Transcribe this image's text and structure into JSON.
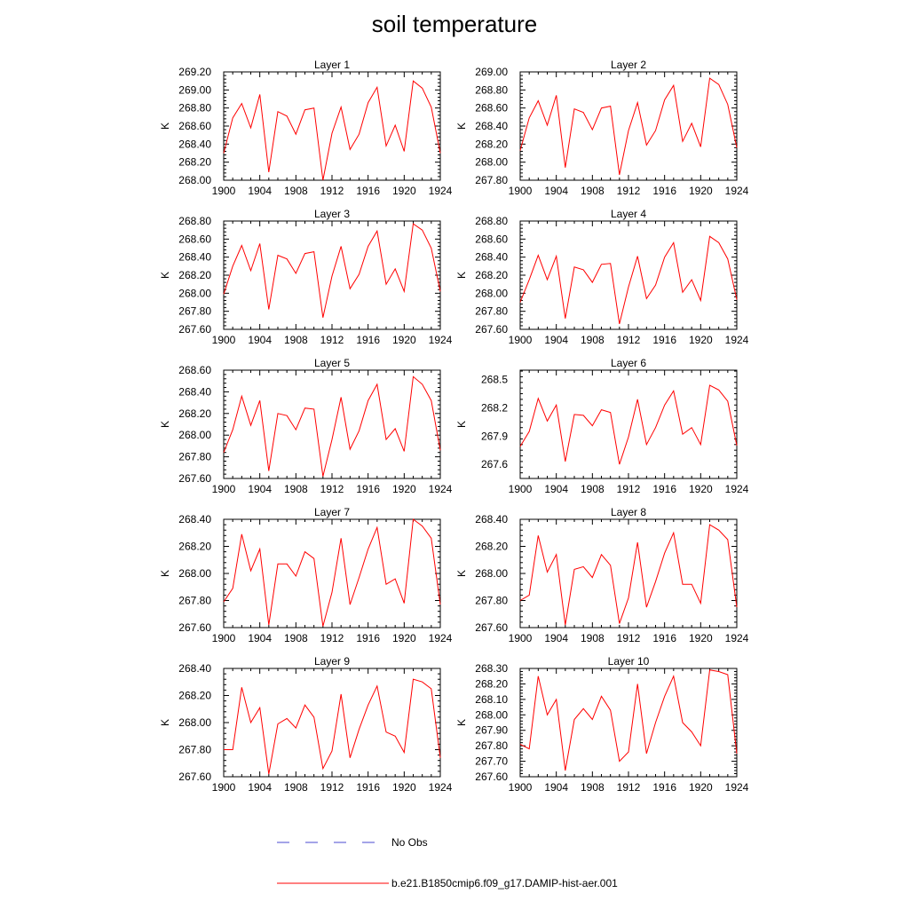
{
  "title": "soil temperature",
  "legend": [
    {
      "label": "No Obs",
      "color": "#4a4ad0",
      "style": "dashed"
    },
    {
      "label": "b.e21.B1850cmip6.f09_g17.DAMIP-hist-aer.001",
      "color": "#ff0000",
      "style": "solid"
    }
  ],
  "chart_data": [
    {
      "type": "line",
      "title": "Layer 1",
      "ylabel": "K",
      "xlim": [
        1900,
        1924
      ],
      "ylim": [
        268.0,
        269.2
      ],
      "x_ticks": [
        1900,
        1904,
        1908,
        1912,
        1916,
        1920,
        1924
      ],
      "y_ticks": [
        "268.00",
        "268.20",
        "268.40",
        "268.60",
        "268.80",
        "269.00",
        "269.20"
      ],
      "y_tick_values": [
        268.0,
        268.2,
        268.4,
        268.6,
        268.8,
        269.0,
        269.2
      ],
      "series": [
        {
          "color": "#ff0000",
          "x": [
            1900,
            1901,
            1902,
            1903,
            1904,
            1905,
            1906,
            1907,
            1908,
            1909,
            1910,
            1911,
            1912,
            1913,
            1914,
            1915,
            1916,
            1917,
            1918,
            1919,
            1920,
            1921,
            1922,
            1923,
            1924
          ],
          "values": [
            268.3,
            268.69,
            268.85,
            268.58,
            268.95,
            268.09,
            268.76,
            268.71,
            268.51,
            268.78,
            268.8,
            268.0,
            268.52,
            268.81,
            268.34,
            268.51,
            268.86,
            269.03,
            268.38,
            268.61,
            268.32,
            269.1,
            269.02,
            268.81,
            268.3
          ]
        }
      ]
    },
    {
      "type": "line",
      "title": "Layer 2",
      "ylabel": "K",
      "xlim": [
        1900,
        1924
      ],
      "ylim": [
        267.8,
        269.0
      ],
      "x_ticks": [
        1900,
        1904,
        1908,
        1912,
        1916,
        1920,
        1924
      ],
      "y_ticks": [
        "267.80",
        "268.00",
        "268.20",
        "268.40",
        "268.60",
        "268.80",
        "269.00"
      ],
      "y_tick_values": [
        267.8,
        268.0,
        268.2,
        268.4,
        268.6,
        268.8,
        269.0
      ],
      "series": [
        {
          "color": "#ff0000",
          "x": [
            1900,
            1901,
            1902,
            1903,
            1904,
            1905,
            1906,
            1907,
            1908,
            1909,
            1910,
            1911,
            1912,
            1913,
            1914,
            1915,
            1916,
            1917,
            1918,
            1919,
            1920,
            1921,
            1922,
            1923,
            1924
          ],
          "values": [
            268.13,
            268.49,
            268.68,
            268.41,
            268.74,
            267.94,
            268.59,
            268.55,
            268.36,
            268.6,
            268.62,
            267.86,
            268.35,
            268.66,
            268.19,
            268.35,
            268.69,
            268.85,
            268.23,
            268.43,
            268.17,
            268.93,
            268.86,
            268.64,
            268.16
          ]
        }
      ]
    },
    {
      "type": "line",
      "title": "Layer 3",
      "ylabel": "K",
      "xlim": [
        1900,
        1924
      ],
      "ylim": [
        267.6,
        268.8
      ],
      "x_ticks": [
        1900,
        1904,
        1908,
        1912,
        1916,
        1920,
        1924
      ],
      "y_ticks": [
        "267.60",
        "267.80",
        "268.00",
        "268.20",
        "268.40",
        "268.60",
        "268.80"
      ],
      "y_tick_values": [
        267.6,
        267.8,
        268.0,
        268.2,
        268.4,
        268.6,
        268.8
      ],
      "series": [
        {
          "color": "#ff0000",
          "x": [
            1900,
            1901,
            1902,
            1903,
            1904,
            1905,
            1906,
            1907,
            1908,
            1909,
            1910,
            1911,
            1912,
            1913,
            1914,
            1915,
            1916,
            1917,
            1918,
            1919,
            1920,
            1921,
            1922,
            1923,
            1924
          ],
          "values": [
            267.99,
            268.3,
            268.53,
            268.25,
            268.55,
            267.82,
            268.42,
            268.38,
            268.22,
            268.44,
            268.46,
            267.73,
            268.19,
            268.52,
            268.05,
            268.21,
            268.52,
            268.69,
            268.1,
            268.27,
            268.02,
            268.77,
            268.7,
            268.5,
            268.02
          ]
        }
      ]
    },
    {
      "type": "line",
      "title": "Layer 4",
      "ylabel": "K",
      "xlim": [
        1900,
        1924
      ],
      "ylim": [
        267.6,
        268.8
      ],
      "x_ticks": [
        1900,
        1904,
        1908,
        1912,
        1916,
        1920,
        1924
      ],
      "y_ticks": [
        "267.60",
        "267.80",
        "268.00",
        "268.20",
        "268.40",
        "268.60",
        "268.80"
      ],
      "y_tick_values": [
        267.6,
        267.8,
        268.0,
        268.2,
        268.4,
        268.6,
        268.8
      ],
      "series": [
        {
          "color": "#ff0000",
          "x": [
            1900,
            1901,
            1902,
            1903,
            1904,
            1905,
            1906,
            1907,
            1908,
            1909,
            1910,
            1911,
            1912,
            1913,
            1914,
            1915,
            1916,
            1917,
            1918,
            1919,
            1920,
            1921,
            1922,
            1923,
            1924
          ],
          "values": [
            267.9,
            268.15,
            268.42,
            268.15,
            268.41,
            267.72,
            268.29,
            268.26,
            268.12,
            268.32,
            268.33,
            267.66,
            268.07,
            268.41,
            267.94,
            268.09,
            268.4,
            268.56,
            268.01,
            268.15,
            267.92,
            268.63,
            268.56,
            268.38,
            267.93
          ]
        }
      ]
    },
    {
      "type": "line",
      "title": "Layer 5",
      "ylabel": "K",
      "xlim": [
        1900,
        1924
      ],
      "ylim": [
        267.6,
        268.6
      ],
      "x_ticks": [
        1900,
        1904,
        1908,
        1912,
        1916,
        1920,
        1924
      ],
      "y_ticks": [
        "267.60",
        "267.80",
        "268.00",
        "268.20",
        "268.40",
        "268.60"
      ],
      "y_tick_values": [
        267.6,
        267.8,
        268.0,
        268.2,
        268.4,
        268.6
      ],
      "series": [
        {
          "color": "#ff0000",
          "x": [
            1900,
            1901,
            1902,
            1903,
            1904,
            1905,
            1906,
            1907,
            1908,
            1909,
            1910,
            1911,
            1912,
            1913,
            1914,
            1915,
            1916,
            1917,
            1918,
            1919,
            1920,
            1921,
            1922,
            1923,
            1924
          ],
          "values": [
            267.84,
            268.05,
            268.36,
            268.09,
            268.32,
            267.67,
            268.2,
            268.18,
            268.05,
            268.25,
            268.24,
            267.62,
            267.96,
            268.35,
            267.87,
            268.04,
            268.32,
            268.47,
            267.96,
            268.06,
            267.85,
            268.54,
            268.47,
            268.32,
            267.86
          ]
        }
      ]
    },
    {
      "type": "line",
      "title": "Layer 6",
      "ylabel": "K",
      "xlim": [
        1900,
        1924
      ],
      "ylim": [
        267.45,
        268.6
      ],
      "x_ticks": [
        1900,
        1904,
        1908,
        1912,
        1916,
        1920,
        1924
      ],
      "y_ticks": [
        "267.6",
        "267.9",
        "268.2",
        "268.5"
      ],
      "y_tick_values": [
        267.6,
        267.9,
        268.2,
        268.5
      ],
      "series": [
        {
          "color": "#ff0000",
          "x": [
            1900,
            1901,
            1902,
            1903,
            1904,
            1905,
            1906,
            1907,
            1908,
            1909,
            1910,
            1911,
            1912,
            1913,
            1914,
            1915,
            1916,
            1917,
            1918,
            1919,
            1920,
            1921,
            1922,
            1923,
            1924
          ],
          "values": [
            267.79,
            267.95,
            268.3,
            268.06,
            268.23,
            267.63,
            268.13,
            268.12,
            268.01,
            268.18,
            268.15,
            267.6,
            267.89,
            268.29,
            267.81,
            267.99,
            268.23,
            268.38,
            267.92,
            267.99,
            267.81,
            268.44,
            268.39,
            268.27,
            267.8
          ]
        }
      ]
    },
    {
      "type": "line",
      "title": "Layer 7",
      "ylabel": "K",
      "xlim": [
        1900,
        1924
      ],
      "ylim": [
        267.6,
        268.4
      ],
      "x_ticks": [
        1900,
        1904,
        1908,
        1912,
        1916,
        1920,
        1924
      ],
      "y_ticks": [
        "267.60",
        "267.80",
        "268.00",
        "268.20",
        "268.40"
      ],
      "y_tick_values": [
        267.6,
        267.8,
        268.0,
        268.2,
        268.4
      ],
      "series": [
        {
          "color": "#ff0000",
          "x": [
            1900,
            1901,
            1902,
            1903,
            1904,
            1905,
            1906,
            1907,
            1908,
            1909,
            1910,
            1911,
            1912,
            1913,
            1914,
            1915,
            1916,
            1917,
            1918,
            1919,
            1920,
            1921,
            1922,
            1923,
            1924
          ],
          "values": [
            267.79,
            267.89,
            268.29,
            268.02,
            268.18,
            267.62,
            268.07,
            268.07,
            267.98,
            268.16,
            268.11,
            267.61,
            267.86,
            268.26,
            267.77,
            267.97,
            268.18,
            268.34,
            267.92,
            267.96,
            267.78,
            268.4,
            268.35,
            268.26,
            267.77
          ]
        }
      ]
    },
    {
      "type": "line",
      "title": "Layer 8",
      "ylabel": "K",
      "xlim": [
        1900,
        1924
      ],
      "ylim": [
        267.6,
        268.4
      ],
      "x_ticks": [
        1900,
        1904,
        1908,
        1912,
        1916,
        1920,
        1924
      ],
      "y_ticks": [
        "267.60",
        "267.80",
        "268.00",
        "268.20",
        "268.40"
      ],
      "y_tick_values": [
        267.6,
        267.8,
        268.0,
        268.2,
        268.4
      ],
      "series": [
        {
          "color": "#ff0000",
          "x": [
            1900,
            1901,
            1902,
            1903,
            1904,
            1905,
            1906,
            1907,
            1908,
            1909,
            1910,
            1911,
            1912,
            1913,
            1914,
            1915,
            1916,
            1917,
            1918,
            1919,
            1920,
            1921,
            1922,
            1923,
            1924
          ],
          "values": [
            267.8,
            267.84,
            268.28,
            268.01,
            268.14,
            267.62,
            268.03,
            268.05,
            267.97,
            268.14,
            268.06,
            267.63,
            267.82,
            268.23,
            267.75,
            267.94,
            268.15,
            268.3,
            267.92,
            267.92,
            267.78,
            268.36,
            268.32,
            268.25,
            267.75
          ]
        }
      ]
    },
    {
      "type": "line",
      "title": "Layer 9",
      "ylabel": "K",
      "xlim": [
        1900,
        1924
      ],
      "ylim": [
        267.6,
        268.4
      ],
      "x_ticks": [
        1900,
        1904,
        1908,
        1912,
        1916,
        1920,
        1924
      ],
      "y_ticks": [
        "267.60",
        "267.80",
        "268.00",
        "268.20",
        "268.40"
      ],
      "y_tick_values": [
        267.6,
        267.8,
        268.0,
        268.2,
        268.4
      ],
      "series": [
        {
          "color": "#ff0000",
          "x": [
            1900,
            1901,
            1902,
            1903,
            1904,
            1905,
            1906,
            1907,
            1908,
            1909,
            1910,
            1911,
            1912,
            1913,
            1914,
            1915,
            1916,
            1917,
            1918,
            1919,
            1920,
            1921,
            1922,
            1923,
            1924
          ],
          "values": [
            267.8,
            267.8,
            268.26,
            268.0,
            268.11,
            267.62,
            267.99,
            268.03,
            267.96,
            268.13,
            268.04,
            267.66,
            267.79,
            268.21,
            267.74,
            267.95,
            268.13,
            268.27,
            267.93,
            267.9,
            267.78,
            268.32,
            268.3,
            268.25,
            267.74
          ]
        }
      ]
    },
    {
      "type": "line",
      "title": "Layer 10",
      "ylabel": "K",
      "xlim": [
        1900,
        1924
      ],
      "ylim": [
        267.6,
        268.3
      ],
      "x_ticks": [
        1900,
        1904,
        1908,
        1912,
        1916,
        1920,
        1924
      ],
      "y_ticks": [
        "267.60",
        "267.70",
        "267.80",
        "267.90",
        "268.00",
        "268.10",
        "268.20",
        "268.30"
      ],
      "y_tick_values": [
        267.6,
        267.7,
        267.8,
        267.9,
        268.0,
        268.1,
        268.2,
        268.3
      ],
      "series": [
        {
          "color": "#ff0000",
          "x": [
            1900,
            1901,
            1902,
            1903,
            1904,
            1905,
            1906,
            1907,
            1908,
            1909,
            1910,
            1911,
            1912,
            1913,
            1914,
            1915,
            1916,
            1917,
            1918,
            1919,
            1920,
            1921,
            1922,
            1923,
            1924
          ],
          "values": [
            267.81,
            267.78,
            268.25,
            268.0,
            268.1,
            267.64,
            267.97,
            268.04,
            267.97,
            268.12,
            268.03,
            267.7,
            267.76,
            268.2,
            267.75,
            267.95,
            268.12,
            268.25,
            267.95,
            267.89,
            267.8,
            268.29,
            268.28,
            268.26,
            267.75
          ]
        }
      ]
    }
  ]
}
